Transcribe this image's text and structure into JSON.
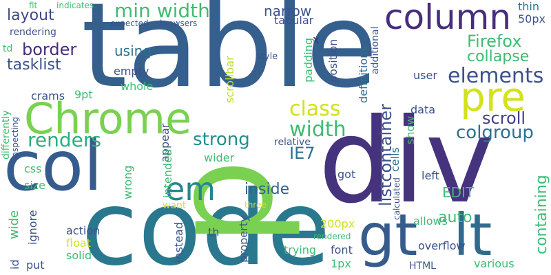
{
  "words": [
    {
      "text": "table",
      "color": "#355f8d"
    },
    {
      "text": "div",
      "color": "#46337e"
    },
    {
      "text": "code",
      "color": "#2a788e"
    },
    {
      "text": "p",
      "color": "#7ad151"
    },
    {
      "text": "col",
      "color": "#365c8d"
    },
    {
      "text": "Chrome",
      "color": "#7ad151"
    },
    {
      "text": "column",
      "color": "#472d7b"
    },
    {
      "text": "gt",
      "color": "#365c8d"
    },
    {
      "text": "lt",
      "color": "#306a8e"
    },
    {
      "text": "pre",
      "color": "#d2e21b"
    },
    {
      "text": "em",
      "color": "#24868e"
    },
    {
      "text": "min width",
      "color": "#3fbc73"
    },
    {
      "text": "border",
      "color": "#472c7a"
    },
    {
      "text": "layout",
      "color": "#3e4989"
    },
    {
      "text": "tasklist",
      "color": "#3b518b"
    },
    {
      "text": "using",
      "color": "#2d708e"
    },
    {
      "text": "renders",
      "color": "#29af7f"
    },
    {
      "text": "elements",
      "color": "#3b528b"
    },
    {
      "text": "class",
      "color": "#d2e21b"
    },
    {
      "text": "width",
      "color": "#3fbc73"
    },
    {
      "text": "colgroup",
      "color": "#2c738e"
    },
    {
      "text": "strong",
      "color": "#218f8d"
    },
    {
      "text": "scroll",
      "color": "#424086"
    },
    {
      "text": "Firefox",
      "color": "#3fbc73"
    },
    {
      "text": "collapse",
      "color": "#3fbc73"
    },
    {
      "text": "listcontainer",
      "color": "#3b528b"
    },
    {
      "text": "containing",
      "color": "#3fbc73"
    },
    {
      "text": "auto",
      "color": "#3fbc73"
    },
    {
      "text": "inside",
      "color": "#33628d"
    },
    {
      "text": "IE7",
      "color": "#2c728e"
    },
    {
      "text": "EDIT",
      "color": "#3fbc73"
    },
    {
      "text": "narrow",
      "color": "#3b528b"
    },
    {
      "text": "tabular",
      "color": "#3b528b"
    },
    {
      "text": "thin",
      "color": "#2c728e"
    },
    {
      "text": "50px",
      "color": "#3b528b"
    },
    {
      "text": "additional",
      "color": "#3b528b"
    },
    {
      "text": "definitions",
      "color": "#2d708e"
    },
    {
      "text": "position",
      "color": "#3b528b"
    },
    {
      "text": "padding",
      "color": "#3fbc73"
    },
    {
      "text": "x",
      "color": "#46337e"
    },
    {
      "text": "style",
      "color": "#3b528b"
    },
    {
      "text": "empty",
      "color": "#3b528b"
    },
    {
      "text": "whole",
      "color": "#3fbc73"
    },
    {
      "text": "scrollbar",
      "color": "#bddf26"
    },
    {
      "text": "user",
      "color": "#3b528b"
    },
    {
      "text": "9pt",
      "color": "#3fbc73"
    },
    {
      "text": "crams",
      "color": "#3b528b"
    },
    {
      "text": "data",
      "color": "#3b528b"
    },
    {
      "text": "cells",
      "color": "#2c728e"
    },
    {
      "text": "show",
      "color": "#3fbc73"
    },
    {
      "text": "calculated",
      "color": "#3b528b"
    },
    {
      "text": "relative",
      "color": "#3b528b"
    },
    {
      "text": "wider",
      "color": "#3fbc73"
    },
    {
      "text": "appear",
      "color": "#3b528b"
    },
    {
      "text": "intended",
      "color": "#3fbc73"
    },
    {
      "text": "wrong",
      "color": "#3fbc73"
    },
    {
      "text": "want",
      "color": "#d2e21b"
    },
    {
      "text": "left",
      "color": "#3b528b"
    },
    {
      "text": "got",
      "color": "#3b528b"
    },
    {
      "text": "css",
      "color": "#3fbc73"
    },
    {
      "text": "size",
      "color": "#3fbc73"
    },
    {
      "text": "wide",
      "color": "#3fbc73"
    },
    {
      "text": "ignore",
      "color": "#3b528b"
    },
    {
      "text": "id",
      "color": "#3b528b"
    },
    {
      "text": "put",
      "color": "#3b528b"
    },
    {
      "text": "action",
      "color": "#3b528b"
    },
    {
      "text": "float",
      "color": "#d2e21b"
    },
    {
      "text": "solid",
      "color": "#3fbc73"
    },
    {
      "text": "instead",
      "color": "#3b528b"
    },
    {
      "text": "th",
      "color": "#3b528b"
    },
    {
      "text": "property",
      "color": "#3b528b"
    },
    {
      "text": "three",
      "color": "#d2e21b"
    },
    {
      "text": "200px",
      "color": "#d2e21b"
    },
    {
      "text": "rendered",
      "color": "#3fbc73"
    },
    {
      "text": "trying",
      "color": "#3fbc73"
    },
    {
      "text": "font",
      "color": "#3b528b"
    },
    {
      "text": "1px",
      "color": "#3fbc73"
    },
    {
      "text": "allows",
      "color": "#3fbc73"
    },
    {
      "text": "overflow",
      "color": "#3b528b"
    },
    {
      "text": "HTML",
      "color": "#3b528b"
    },
    {
      "text": "various",
      "color": "#3fbc73"
    },
    {
      "text": "fit",
      "color": "#3fbc73"
    },
    {
      "text": "indicates",
      "color": "#3fbc73"
    },
    {
      "text": "expected",
      "color": "#3b528b"
    },
    {
      "text": "browsers",
      "color": "#3b528b"
    },
    {
      "text": "rendering",
      "color": "#3b528b"
    },
    {
      "text": "td",
      "color": "#3fbc73"
    },
    {
      "text": "differently",
      "color": "#3fbc73"
    },
    {
      "text": "inspecting",
      "color": "#3b528b"
    }
  ]
}
